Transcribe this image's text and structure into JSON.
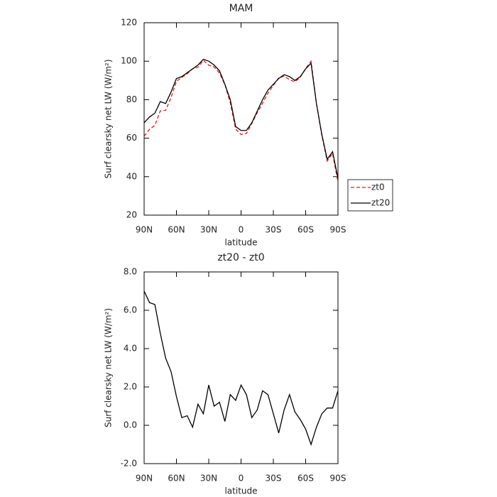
{
  "chart_data": [
    {
      "type": "line",
      "title": "MAM",
      "xlabel": "latitude",
      "ylabel": "Surf clearsky net LW (W/m²)",
      "x": [
        90,
        85,
        80,
        75,
        70,
        65,
        60,
        55,
        50,
        45,
        40,
        35,
        30,
        25,
        20,
        15,
        10,
        5,
        0,
        -5,
        -10,
        -15,
        -20,
        -25,
        -30,
        -35,
        -40,
        -45,
        -50,
        -55,
        -60,
        -65,
        -70,
        -75,
        -80,
        -85,
        -90
      ],
      "series": [
        {
          "name": "zt0",
          "color": "#e41a1c",
          "style": "dashed",
          "values": [
            61,
            64.6,
            66.7,
            74.2,
            74.5,
            81.2,
            89.5,
            91.6,
            93.5,
            96.1,
            96.9,
            100.4,
            97.9,
            97,
            93.8,
            87.8,
            78.4,
            64.7,
            61.9,
            62.4,
            67.6,
            73.2,
            78.2,
            83.4,
            87.4,
            91.4,
            92.2,
            90.4,
            89.3,
            91.7,
            96.2,
            100,
            78.1,
            61.4,
            48.1,
            52.1,
            37.2
          ]
        },
        {
          "name": "zt20",
          "color": "#000000",
          "style": "solid",
          "values": [
            68,
            71,
            73,
            79,
            78,
            84,
            91,
            92,
            94,
            96,
            98,
            101,
            100,
            98,
            95,
            88,
            80,
            66,
            64,
            64,
            68,
            74,
            80,
            85,
            88,
            91,
            93,
            92,
            90,
            92,
            96,
            99,
            78,
            62,
            49,
            53,
            39
          ]
        }
      ],
      "xlim": [
        90,
        -90
      ],
      "xticks": [
        {
          "value": 90,
          "label": "90N"
        },
        {
          "value": 60,
          "label": "60N"
        },
        {
          "value": 30,
          "label": "30N"
        },
        0,
        {
          "value": -30,
          "label": "30S"
        },
        {
          "value": -60,
          "label": "60S"
        },
        {
          "value": -90,
          "label": "90S"
        }
      ],
      "ylim": [
        20,
        120
      ],
      "yticks": [
        20,
        40,
        60,
        80,
        100,
        120
      ],
      "legend": "right"
    },
    {
      "type": "line",
      "title": "zt20 - zt0",
      "xlabel": "latitude",
      "ylabel": "Surf clearsky net LW (W/m²)",
      "x": [
        90,
        85,
        80,
        75,
        70,
        65,
        60,
        55,
        50,
        45,
        40,
        35,
        30,
        25,
        20,
        15,
        10,
        5,
        0,
        -5,
        -10,
        -15,
        -20,
        -25,
        -30,
        -35,
        -40,
        -45,
        -50,
        -55,
        -60,
        -65,
        -70,
        -75,
        -80,
        -85,
        -90
      ],
      "series": [
        {
          "color": "#000000",
          "style": "solid",
          "values": [
            7.0,
            6.4,
            6.3,
            4.8,
            3.5,
            2.8,
            1.5,
            0.4,
            0.5,
            -0.1,
            1.1,
            0.6,
            2.1,
            1.0,
            1.2,
            0.2,
            1.6,
            1.3,
            2.1,
            1.6,
            0.4,
            0.8,
            1.8,
            1.6,
            0.6,
            -0.4,
            0.8,
            1.6,
            0.7,
            0.3,
            -0.2,
            -1.0,
            -0.1,
            0.6,
            0.9,
            0.9,
            1.8
          ]
        }
      ],
      "xlim": [
        90,
        -90
      ],
      "xticks": [
        {
          "value": 90,
          "label": "90N"
        },
        {
          "value": 60,
          "label": "60N"
        },
        {
          "value": 30,
          "label": "30N"
        },
        0,
        {
          "value": -30,
          "label": "30S"
        },
        {
          "value": -60,
          "label": "60S"
        },
        {
          "value": -90,
          "label": "90S"
        }
      ],
      "ylim": [
        -2,
        8
      ],
      "yticks": [
        {
          "value": -2,
          "label": "-2.0"
        },
        {
          "value": 0,
          "label": "0.0"
        },
        {
          "value": 2,
          "label": "2.0"
        },
        {
          "value": 4,
          "label": "4.0"
        },
        {
          "value": 6,
          "label": "6.0"
        },
        {
          "value": 8,
          "label": "8.0"
        }
      ]
    }
  ]
}
